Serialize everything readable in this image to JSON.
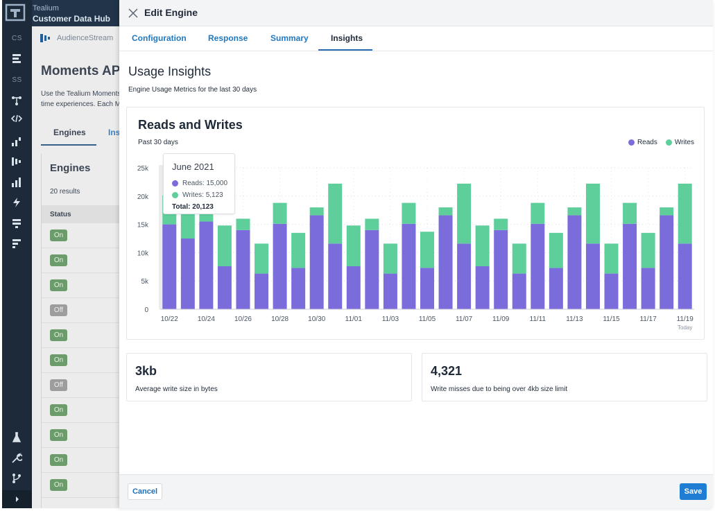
{
  "app": {
    "brand_line1": "Tealium",
    "brand_line2": "Customer Data Hub"
  },
  "rail": {
    "sections": [
      "CS",
      "SS"
    ],
    "icons": [
      "cs-data-icon",
      "ss-connections-icon",
      "code-icon",
      "bar-chart-icon",
      "audiencestream-icon",
      "analytics-icon",
      "lightning-icon",
      "stack-icon",
      "layers-icon",
      "lab-flask-icon",
      "wrench-icon",
      "branch-icon",
      "chevron-right-icon"
    ]
  },
  "background": {
    "breadcrumb": "AudienceStream",
    "page_title": "Moments API",
    "description": "Use the Tealium Moments API to build real-time experiences. Each Moment",
    "tab_engines": "Engines",
    "tab_insights": "Ins",
    "panel_title": "Engines",
    "results": "20 results",
    "status_header": "Status",
    "rows": [
      "On",
      "On",
      "On",
      "Off",
      "On",
      "On",
      "Off",
      "On",
      "On",
      "On",
      "On"
    ]
  },
  "drawer": {
    "title": "Edit Engine",
    "tabs": [
      "Configuration",
      "Response",
      "Summary",
      "Insights"
    ],
    "active_tab": "Insights",
    "section_title": "Usage Insights",
    "section_subtitle": "Engine Usage Metrics for the last 30 days",
    "cancel_label": "Cancel",
    "save_label": "Save"
  },
  "chart": {
    "title": "Reads and Writes",
    "subtitle": "Past 30 days",
    "legend": [
      {
        "name": "Reads",
        "color": "#7b6cdc"
      },
      {
        "name": "Writes",
        "color": "#5ecf9b"
      }
    ],
    "today_label": "Today",
    "tooltip": {
      "title": "June 2021",
      "reads": "Reads: 15,000",
      "writes": "Writes: 5,123",
      "total": "Total: 20,123"
    }
  },
  "chart_data": {
    "type": "bar",
    "stacked": true,
    "title": "Reads and Writes",
    "subtitle": "Past 30 days",
    "categories": [
      "10/22",
      "10/23",
      "10/24",
      "10/25",
      "10/26",
      "10/27",
      "10/28",
      "10/29",
      "10/30",
      "10/31",
      "11/01",
      "11/02",
      "11/03",
      "11/04",
      "11/05",
      "11/06",
      "11/07",
      "11/08",
      "11/09",
      "11/10",
      "11/11",
      "11/12",
      "11/13",
      "11/14",
      "11/15",
      "11/16",
      "11/17",
      "11/18",
      "11/19"
    ],
    "tick_labels": [
      "10/22",
      "10/24",
      "10/26",
      "10/28",
      "10/30",
      "11/01",
      "11/03",
      "11/05",
      "11/07",
      "11/09",
      "11/11",
      "11/13",
      "11/15",
      "11/17",
      "11/19"
    ],
    "series": [
      {
        "name": "Reads",
        "color": "#7b6cdc",
        "values": [
          15000,
          12500,
          15500,
          7600,
          14000,
          6300,
          15100,
          7300,
          16600,
          11600,
          7600,
          14000,
          6300,
          15100,
          7300,
          16600,
          11600,
          7600,
          14000,
          6300,
          15100,
          7300,
          16600,
          11600,
          6300,
          15100,
          7300,
          16600,
          11600
        ]
      },
      {
        "name": "Writes",
        "color": "#5ecf9b",
        "values": [
          5123,
          5700,
          4300,
          7200,
          2000,
          5300,
          3700,
          6200,
          1400,
          10600,
          7200,
          2000,
          5300,
          3700,
          6400,
          1400,
          10600,
          7200,
          2000,
          5300,
          3700,
          6200,
          1400,
          10600,
          5300,
          3700,
          6200,
          1400,
          10600
        ]
      }
    ],
    "y_ticks": [
      "0",
      "5k",
      "10k",
      "15k",
      "20k",
      "25k"
    ],
    "ylim": [
      0,
      25000
    ],
    "grid": true,
    "legend_position": "top-right",
    "highlighted_index": 0
  },
  "metrics": [
    {
      "value": "3kb",
      "label": "Average write size in bytes"
    },
    {
      "value": "4,321",
      "label": "Write misses due to being over 4kb size limit"
    }
  ]
}
